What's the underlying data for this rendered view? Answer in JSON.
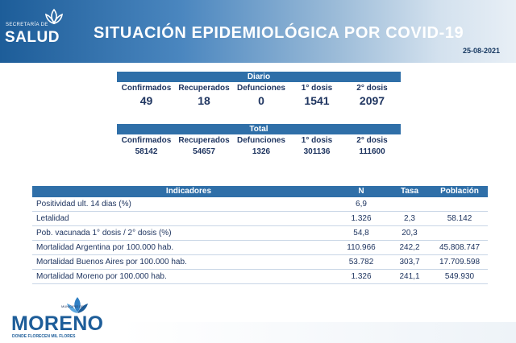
{
  "header": {
    "logo_top": "SECRETARÍA DE",
    "logo_word": "SALUD",
    "title": "SITUACIÓN EPIDEMIOLÓGICA POR COVID-19",
    "date": "25-08-2021"
  },
  "diario": {
    "title": "Diario",
    "labels": [
      "Confirmados",
      "Recuperados",
      "Defunciones",
      "1° dosis",
      "2° dosis"
    ],
    "values": [
      "49",
      "18",
      "0",
      "1541",
      "2097"
    ]
  },
  "total": {
    "title": "Total",
    "labels": [
      "Confirmados",
      "Recuperados",
      "Defunciones",
      "1° dosis",
      "2° dosis"
    ],
    "values": [
      "58142",
      "54657",
      "1326",
      "301136",
      "111600"
    ]
  },
  "indicadores": {
    "headers": {
      "indicadores": "Indicadores",
      "n": "N",
      "tasa": "Tasa",
      "poblacion": "Población"
    },
    "rows": [
      {
        "label": "Positividad ult. 14 dias (%)",
        "n": "6,9",
        "tasa": "",
        "poblacion": ""
      },
      {
        "label": "Letalidad",
        "n": "1.326",
        "tasa": "2,3",
        "poblacion": "58.142"
      },
      {
        "label": "Pob. vacunada 1° dosis / 2° dosis (%)",
        "n": "54,8",
        "tasa": "20,3",
        "poblacion": ""
      },
      {
        "label": "Mortalidad Argentina por 100.000 hab.",
        "n": "110.966",
        "tasa": "242,2",
        "poblacion": "45.808.747"
      },
      {
        "label": "Mortalidad Buenos Aires por 100.000 hab.",
        "n": "53.782",
        "tasa": "303,7",
        "poblacion": "17.709.598"
      },
      {
        "label": "Mortalidad Moreno por 100.000 hab.",
        "n": "1.326",
        "tasa": "241,1",
        "poblacion": "549.930"
      }
    ]
  },
  "footer": {
    "muni": "MUNICIPIO DE",
    "word": "MORENO",
    "tagline": "DONDE FLORECEN MIL FLORES"
  },
  "colors": {
    "primary": "#2f6fa8",
    "dark_text": "#1f3560",
    "brand": "#1d5d99"
  }
}
